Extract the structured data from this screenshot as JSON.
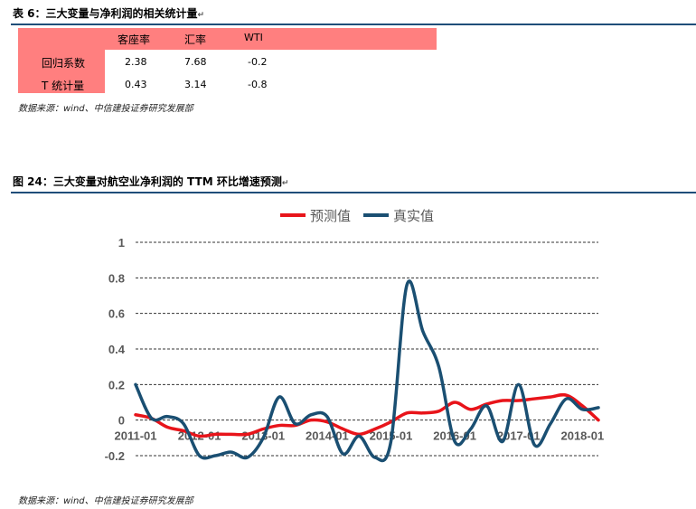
{
  "table": {
    "caption": "表 6：三大变量与净利润的相关统计量",
    "headers": [
      "",
      "客座率",
      "汇率",
      "WTI"
    ],
    "rows": [
      {
        "label": "回归系数",
        "values": [
          "2.38",
          "7.68",
          "-0.2"
        ]
      },
      {
        "label": "T 统计量",
        "values": [
          "0.43",
          "3.14",
          "-0.8"
        ]
      }
    ],
    "source": "数据来源：wind、中信建投证券研究发展部"
  },
  "figure": {
    "caption": "图 24：三大变量对航空业净利润的 TTM 环比增速预测",
    "source": "数据来源：wind、中信建投证券研究发展部",
    "pilcrow": "↵"
  },
  "chart_data": {
    "type": "line",
    "title": "",
    "xlabel": "",
    "ylabel": "",
    "x_ticks": [
      "2011-01",
      "2012-01",
      "2013-01",
      "2014-01",
      "2015-01",
      "2016-01",
      "2017-01",
      "2018-01"
    ],
    "y_ticks": [
      "1",
      "0.8",
      "0.6",
      "0.4",
      "0.2",
      "0",
      "-0.2"
    ],
    "ylim": [
      -0.2,
      1.0
    ],
    "grid": true,
    "legend_position": "top-center",
    "x": [
      2011.0,
      2011.25,
      2011.5,
      2011.75,
      2012.0,
      2012.25,
      2012.5,
      2012.75,
      2013.0,
      2013.25,
      2013.5,
      2013.75,
      2014.0,
      2014.25,
      2014.5,
      2014.75,
      2015.0,
      2015.25,
      2015.5,
      2015.75,
      2016.0,
      2016.25,
      2016.5,
      2016.75,
      2017.0,
      2017.25,
      2017.5,
      2017.75,
      2018.0,
      2018.25
    ],
    "series": [
      {
        "name": "预测值",
        "color": "#e8141a",
        "values": [
          0.03,
          0.01,
          -0.04,
          -0.06,
          -0.09,
          -0.08,
          -0.08,
          -0.08,
          -0.05,
          -0.03,
          -0.03,
          0.0,
          -0.01,
          -0.05,
          -0.08,
          -0.05,
          -0.01,
          0.04,
          0.04,
          0.05,
          0.1,
          0.06,
          0.09,
          0.11,
          0.11,
          0.12,
          0.13,
          0.14,
          0.08,
          0.0
        ]
      },
      {
        "name": "真实值",
        "color": "#1a4f72",
        "values": [
          0.2,
          0.01,
          0.02,
          -0.02,
          -0.2,
          -0.2,
          -0.18,
          -0.21,
          -0.1,
          0.13,
          -0.02,
          0.03,
          0.02,
          -0.19,
          -0.09,
          -0.21,
          -0.12,
          0.76,
          0.5,
          0.3,
          -0.12,
          -0.05,
          0.08,
          -0.12,
          0.2,
          -0.14,
          -0.02,
          0.12,
          0.06,
          0.07
        ]
      }
    ]
  }
}
